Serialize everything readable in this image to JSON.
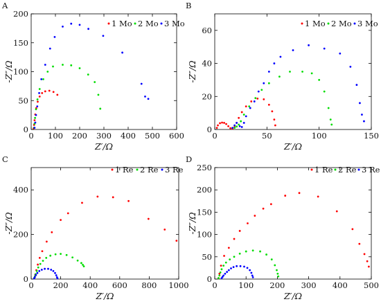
{
  "chart_data": [
    {
      "type": "scatter",
      "panel_label": "A",
      "xlabel": "Z′/Ω",
      "ylabel": "-Z″/Ω",
      "xlim": [
        0,
        600
      ],
      "ylim": [
        0,
        200
      ],
      "xticks": [
        0,
        100,
        200,
        300,
        400,
        500,
        600
      ],
      "yticks": [
        0,
        50,
        100,
        150,
        200
      ],
      "grid": false,
      "legend_position": "top-right",
      "series": [
        {
          "name": "1 Mo",
          "color": "#ff0000",
          "points": [
            [
              10,
              2
            ],
            [
              12,
              8
            ],
            [
              14,
              16
            ],
            [
              17,
              26
            ],
            [
              21,
              37
            ],
            [
              27,
              48
            ],
            [
              35,
              57
            ],
            [
              45,
              63
            ],
            [
              58,
              66
            ],
            [
              75,
              67
            ],
            [
              92,
              65
            ],
            [
              108,
              60
            ]
          ]
        },
        {
          "name": "2 Mo",
          "color": "#00dd00",
          "points": [
            [
              12,
              3
            ],
            [
              14,
              10
            ],
            [
              16,
              20
            ],
            [
              20,
              35
            ],
            [
              26,
              52
            ],
            [
              35,
              70
            ],
            [
              50,
              87
            ],
            [
              68,
              100
            ],
            [
              90,
              109
            ],
            [
              130,
              112
            ],
            [
              165,
              111
            ],
            [
              200,
              106
            ],
            [
              235,
              95
            ],
            [
              262,
              82
            ],
            [
              277,
              60
            ],
            [
              285,
              36
            ]
          ]
        },
        {
          "name": "3 Mo",
          "color": "#0000ff",
          "points": [
            [
              14,
              3
            ],
            [
              17,
              12
            ],
            [
              20,
              25
            ],
            [
              25,
              40
            ],
            [
              33,
              63
            ],
            [
              42,
              87
            ],
            [
              58,
              112
            ],
            [
              78,
              140
            ],
            [
              97,
              160
            ],
            [
              130,
              178
            ],
            [
              165,
              183
            ],
            [
              200,
              181
            ],
            [
              236,
              174
            ],
            [
              297,
              162
            ],
            [
              376,
              133
            ],
            [
              455,
              79
            ],
            [
              470,
              57
            ],
            [
              483,
              53
            ]
          ]
        }
      ]
    },
    {
      "type": "scatter",
      "panel_label": "B",
      "xlabel": "Z′/Ω",
      "ylabel": "-Z″/Ω",
      "xlim": [
        0,
        150
      ],
      "ylim": [
        0,
        70
      ],
      "xticks": [
        0,
        50,
        100,
        150
      ],
      "yticks": [
        0,
        20,
        40,
        60
      ],
      "grid": false,
      "legend_position": "top-right",
      "series": [
        {
          "name": "1 Mo",
          "color": "#ff0000",
          "points": [
            [
              2,
              1
            ],
            [
              3,
              2.5
            ],
            [
              5,
              3.8
            ],
            [
              7,
              4.2
            ],
            [
              9,
              4
            ],
            [
              11,
              3.3
            ],
            [
              13,
              2
            ],
            [
              15,
              0.8
            ],
            [
              17,
              0.5
            ],
            [
              19,
              1.5
            ],
            [
              21,
              4
            ],
            [
              23,
              7
            ],
            [
              26,
              10.5
            ],
            [
              30,
              14
            ],
            [
              35,
              17
            ],
            [
              41,
              18.7
            ],
            [
              47,
              18.3
            ],
            [
              52,
              15
            ],
            [
              55,
              11
            ],
            [
              57,
              6
            ],
            [
              58,
              2.5
            ]
          ]
        },
        {
          "name": "2 Mo",
          "color": "#00dd00",
          "points": [
            [
              19,
              1
            ],
            [
              21,
              1.8
            ],
            [
              23,
              3
            ],
            [
              25,
              5
            ],
            [
              28,
              9
            ],
            [
              33,
              14
            ],
            [
              39,
              19
            ],
            [
              45,
              24
            ],
            [
              52,
              28
            ],
            [
              62,
              32
            ],
            [
              72,
              35
            ],
            [
              84,
              35
            ],
            [
              93,
              34
            ],
            [
              100,
              30
            ],
            [
              105,
              23
            ],
            [
              109,
              13
            ],
            [
              111,
              6
            ],
            [
              112,
              3
            ]
          ]
        },
        {
          "name": "3 Mo",
          "color": "#0000ff",
          "points": [
            [
              17,
              1
            ],
            [
              19,
              2.5
            ],
            [
              21,
              4
            ],
            [
              24,
              2
            ],
            [
              26,
              1.5
            ],
            [
              28,
              4
            ],
            [
              30,
              8
            ],
            [
              34,
              13
            ],
            [
              38,
              17
            ],
            [
              42,
              23
            ],
            [
              47,
              28
            ],
            [
              52,
              35
            ],
            [
              57,
              40
            ],
            [
              63,
              44
            ],
            [
              75,
              48
            ],
            [
              90,
              51
            ],
            [
              105,
              49
            ],
            [
              120,
              46
            ],
            [
              130,
              38
            ],
            [
              136,
              27
            ],
            [
              139,
              16
            ],
            [
              141,
              9
            ],
            [
              143,
              5
            ]
          ]
        }
      ]
    },
    {
      "type": "scatter",
      "panel_label": "C",
      "xlabel": "Z′/Ω",
      "ylabel": "-Z″/Ω",
      "xlim": [
        0,
        1000
      ],
      "ylim": [
        0,
        500
      ],
      "xticks": [
        0,
        200,
        400,
        600,
        800,
        1000
      ],
      "yticks": [
        0,
        200,
        400
      ],
      "grid": false,
      "legend_position": "top-right",
      "series": [
        {
          "name": "1 Re",
          "color": "#ff0000",
          "points": [
            [
              22,
              5
            ],
            [
              28,
              20
            ],
            [
              35,
              40
            ],
            [
              45,
              65
            ],
            [
              58,
              95
            ],
            [
              75,
              125
            ],
            [
              105,
              168
            ],
            [
              140,
              210
            ],
            [
              200,
              265
            ],
            [
              250,
              295
            ],
            [
              345,
              342
            ],
            [
              450,
              370
            ],
            [
              555,
              367
            ],
            [
              660,
              350
            ],
            [
              795,
              270
            ],
            [
              905,
              222
            ],
            [
              985,
              172
            ]
          ]
        },
        {
          "name": "2 Re",
          "color": "#00dd00",
          "points": [
            [
              20,
              4
            ],
            [
              25,
              12
            ],
            [
              30,
              22
            ],
            [
              38,
              36
            ],
            [
              48,
              52
            ],
            [
              62,
              68
            ],
            [
              80,
              82
            ],
            [
              102,
              95
            ],
            [
              130,
              105
            ],
            [
              165,
              111
            ],
            [
              200,
              113
            ],
            [
              240,
              108
            ],
            [
              280,
              97
            ],
            [
              315,
              83
            ],
            [
              340,
              72
            ],
            [
              350,
              64
            ],
            [
              357,
              57
            ]
          ]
        },
        {
          "name": "3 Re",
          "color": "#0000ff",
          "points": [
            [
              20,
              3
            ],
            [
              25,
              9
            ],
            [
              32,
              18
            ],
            [
              42,
              27
            ],
            [
              55,
              36
            ],
            [
              72,
              42
            ],
            [
              92,
              46
            ],
            [
              115,
              46
            ],
            [
              135,
              42
            ],
            [
              150,
              36
            ],
            [
              162,
              27
            ],
            [
              170,
              17
            ],
            [
              175,
              8
            ],
            [
              178,
              3
            ]
          ]
        }
      ]
    },
    {
      "type": "scatter",
      "panel_label": "D",
      "xlabel": "Z′/Ω",
      "ylabel": "-Z″/Ω",
      "xlim": [
        0,
        500
      ],
      "ylim": [
        0,
        250
      ],
      "xticks": [
        0,
        100,
        200,
        300,
        400,
        500
      ],
      "yticks": [
        0,
        50,
        100,
        150,
        200,
        250
      ],
      "grid": false,
      "legend_position": "top-right",
      "series": [
        {
          "name": "1 Re",
          "color": "#ff0000",
          "points": [
            [
              12,
              2
            ],
            [
              15,
              12
            ],
            [
              20,
              30
            ],
            [
              30,
              52
            ],
            [
              45,
              70
            ],
            [
              62,
              90
            ],
            [
              80,
              108
            ],
            [
              105,
              125
            ],
            [
              128,
              142
            ],
            [
              155,
              158
            ],
            [
              180,
              168
            ],
            [
              225,
              187
            ],
            [
              270,
              193
            ],
            [
              330,
              185
            ],
            [
              390,
              152
            ],
            [
              440,
              112
            ],
            [
              462,
              79
            ],
            [
              478,
              56
            ],
            [
              487,
              40
            ],
            [
              492,
              28
            ]
          ]
        },
        {
          "name": "2 Re",
          "color": "#00dd00",
          "points": [
            [
              12,
              2
            ],
            [
              15,
              8
            ],
            [
              18,
              15
            ],
            [
              22,
              22
            ],
            [
              28,
              30
            ],
            [
              36,
              37
            ],
            [
              48,
              44
            ],
            [
              62,
              50
            ],
            [
              80,
              57
            ],
            [
              100,
              62
            ],
            [
              122,
              64
            ],
            [
              145,
              62
            ],
            [
              165,
              55
            ],
            [
              182,
              44
            ],
            [
              192,
              31
            ],
            [
              198,
              20
            ],
            [
              201,
              12
            ],
            [
              203,
              6
            ]
          ]
        },
        {
          "name": "3 Re",
          "color": "#0000ff",
          "points": [
            [
              22,
              2
            ],
            [
              25,
              5
            ],
            [
              28,
              8
            ],
            [
              33,
              12
            ],
            [
              39,
              16
            ],
            [
              45,
              20
            ],
            [
              52,
              24
            ],
            [
              60,
              27
            ],
            [
              70,
              29
            ],
            [
              82,
              29
            ],
            [
              94,
              28
            ],
            [
              104,
              25
            ],
            [
              112,
              20
            ],
            [
              117,
              14
            ],
            [
              120,
              8
            ],
            [
              122,
              4
            ]
          ]
        }
      ]
    }
  ]
}
